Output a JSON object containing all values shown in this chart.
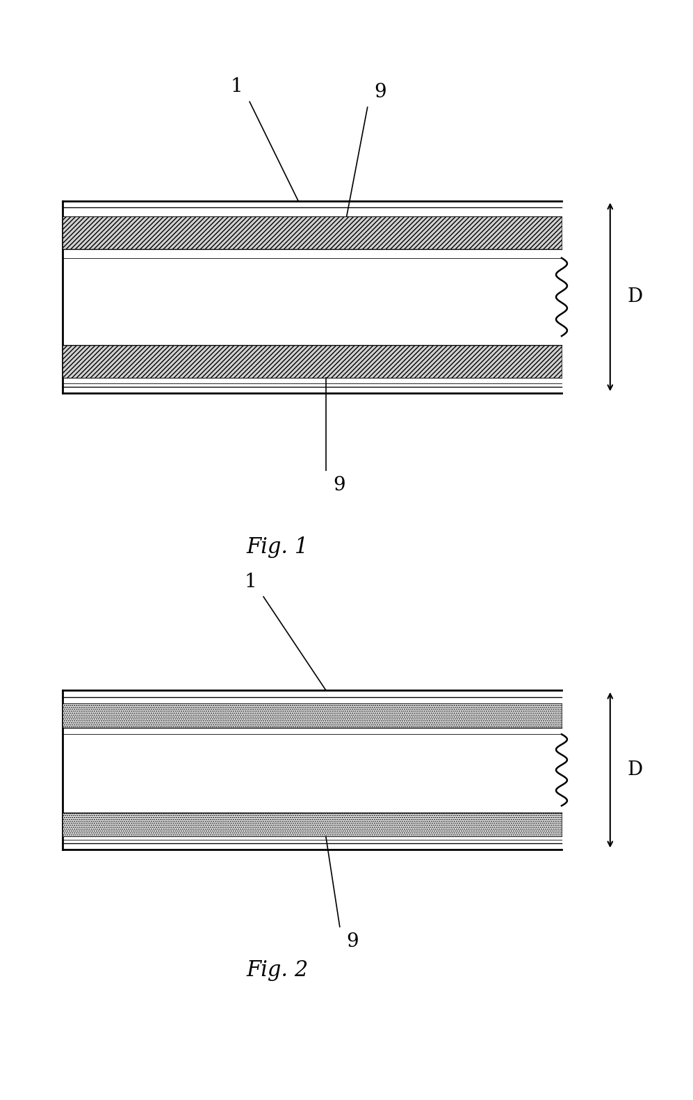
{
  "bg_color": "#ffffff",
  "fig1_label": "Fig. 1",
  "fig2_label": "Fig. 2",
  "label1": "1",
  "label9": "9",
  "label_D": "D",
  "lw_outer": 2.0,
  "lw_inner": 1.2,
  "lw_leader": 1.2,
  "fontsize_label": 20,
  "fontsize_fig": 22
}
